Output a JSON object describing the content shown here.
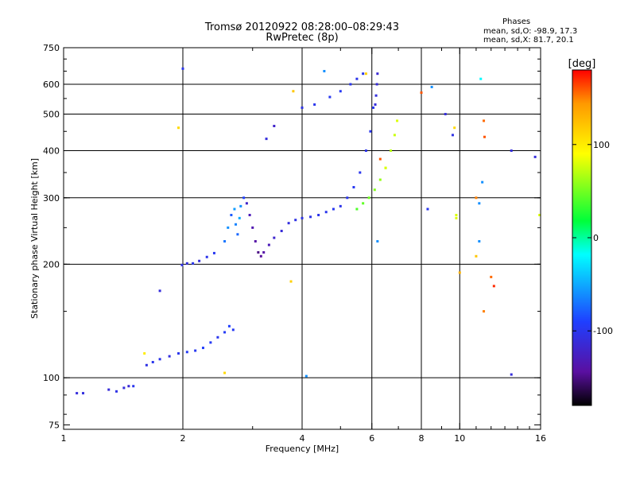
{
  "chart_data": {
    "type": "scatter",
    "title": "Tromsø 20120922 08:28:00–08:29:43",
    "subtitle": "RwPretec (8p)",
    "xlabel": "Frequency [MHz]",
    "ylabel": "Stationary phase Virtual Height [km]",
    "x_scale": "log",
    "y_scale": "log",
    "xlim": [
      1,
      16
    ],
    "ylim": [
      73,
      750
    ],
    "x_ticks": [
      1,
      2,
      4,
      6,
      8,
      10,
      16
    ],
    "y_ticks": [
      75,
      100,
      200,
      300,
      400,
      500,
      600,
      750
    ],
    "x_grid": [
      2,
      4,
      6,
      8,
      10
    ],
    "y_grid": [
      100,
      200,
      300,
      400,
      500,
      600
    ],
    "grid": true,
    "colorbar": {
      "label": "[deg]",
      "range": [
        -180,
        180
      ],
      "ticks": [
        100,
        0,
        -100
      ],
      "position": "right"
    },
    "phase_stats": {
      "heading": "Phases",
      "line_o": "mean, sd,O: -98.9, 17.3",
      "line_x": "mean, sd,X: 81.7, 20.1"
    },
    "series": [
      {
        "values": [
          [
            1.08,
            91,
            -110
          ],
          [
            1.12,
            91,
            -108
          ],
          [
            1.3,
            93,
            -112
          ],
          [
            1.36,
            92,
            -105
          ],
          [
            1.42,
            94,
            -110
          ],
          [
            1.46,
            95,
            -115
          ],
          [
            1.5,
            95,
            -100
          ],
          [
            1.62,
            108,
            -105
          ],
          [
            1.68,
            110,
            -100
          ],
          [
            1.75,
            112,
            -102
          ],
          [
            1.85,
            114,
            -108
          ],
          [
            1.95,
            116,
            -100
          ],
          [
            2.05,
            117,
            -95
          ],
          [
            2.15,
            118,
            -98
          ],
          [
            2.25,
            120,
            -92
          ],
          [
            2.35,
            124,
            -96
          ],
          [
            2.45,
            128,
            -100
          ],
          [
            2.55,
            132,
            -95
          ],
          [
            2.62,
            137,
            -90
          ],
          [
            2.68,
            134,
            -96
          ],
          [
            1.99,
            199,
            -105
          ],
          [
            2.05,
            201,
            -108
          ],
          [
            2.12,
            201,
            -100
          ],
          [
            2.2,
            204,
            -110
          ],
          [
            2.3,
            209,
            -102
          ],
          [
            2.4,
            214,
            -98
          ],
          [
            2.55,
            230,
            -70
          ],
          [
            2.6,
            250,
            -60
          ],
          [
            2.65,
            270,
            -80
          ],
          [
            2.7,
            280,
            -55
          ],
          [
            2.72,
            255,
            -65
          ],
          [
            2.75,
            240,
            -75
          ],
          [
            2.78,
            265,
            -50
          ],
          [
            2.8,
            285,
            -60
          ],
          [
            2.85,
            300,
            -90
          ],
          [
            2.9,
            290,
            -120
          ],
          [
            2.95,
            270,
            -130
          ],
          [
            3.0,
            250,
            -135
          ],
          [
            3.05,
            230,
            -140
          ],
          [
            3.1,
            215,
            -150
          ],
          [
            3.15,
            210,
            -145
          ],
          [
            3.2,
            215,
            -140
          ],
          [
            3.3,
            225,
            -130
          ],
          [
            3.4,
            235,
            -118
          ],
          [
            3.55,
            245,
            -112
          ],
          [
            3.7,
            257,
            -108
          ],
          [
            3.85,
            262,
            -105
          ],
          [
            4.0,
            265,
            -104
          ],
          [
            4.2,
            267,
            -103
          ],
          [
            4.4,
            270,
            -102
          ],
          [
            4.6,
            275,
            -100
          ],
          [
            4.8,
            280,
            -98
          ],
          [
            5.0,
            285,
            -102
          ],
          [
            5.2,
            300,
            -100
          ],
          [
            5.4,
            320,
            -98
          ],
          [
            5.6,
            350,
            -100
          ],
          [
            5.8,
            400,
            -102
          ],
          [
            5.95,
            450,
            -100
          ],
          [
            6.05,
            520,
            -100
          ],
          [
            6.2,
            640,
            -115
          ],
          [
            6.18,
            600,
            -112
          ],
          [
            6.15,
            560,
            -108
          ],
          [
            6.12,
            530,
            -110
          ],
          [
            4.0,
            520,
            -104
          ],
          [
            4.3,
            530,
            -100
          ],
          [
            4.7,
            555,
            -98
          ],
          [
            5.0,
            575,
            -96
          ],
          [
            5.3,
            600,
            -100
          ],
          [
            5.5,
            620,
            -102
          ],
          [
            5.7,
            640,
            -100
          ],
          [
            5.5,
            280,
            40
          ],
          [
            5.7,
            290,
            45
          ],
          [
            5.9,
            300,
            50
          ],
          [
            6.1,
            315,
            55
          ],
          [
            6.3,
            335,
            60
          ],
          [
            6.5,
            360,
            65
          ],
          [
            6.7,
            400,
            70
          ],
          [
            6.85,
            440,
            75
          ],
          [
            6.95,
            480,
            80
          ],
          [
            1.6,
            116,
            100
          ],
          [
            1.75,
            170,
            -110
          ],
          [
            1.95,
            460,
            110
          ],
          [
            2.0,
            660,
            -100
          ],
          [
            2.55,
            103,
            110
          ],
          [
            3.25,
            430,
            -110
          ],
          [
            3.4,
            465,
            -120
          ],
          [
            3.75,
            180,
            115
          ],
          [
            3.8,
            575,
            120
          ],
          [
            4.1,
            101,
            -60
          ],
          [
            4.55,
            650,
            -60
          ],
          [
            5.8,
            640,
            115
          ],
          [
            6.2,
            230,
            -60
          ],
          [
            6.3,
            380,
            160
          ],
          [
            6.5,
            360,
            80
          ],
          [
            8.0,
            570,
            160
          ],
          [
            8.3,
            280,
            -100
          ],
          [
            8.5,
            590,
            -60
          ],
          [
            9.2,
            500,
            -110
          ],
          [
            9.6,
            440,
            -105
          ],
          [
            9.7,
            460,
            110
          ],
          [
            9.8,
            270,
            80
          ],
          [
            10.0,
            190,
            130
          ],
          [
            11.0,
            300,
            150
          ],
          [
            11.2,
            290,
            -60
          ],
          [
            11.4,
            330,
            -60
          ],
          [
            11.5,
            150,
            150
          ],
          [
            11.5,
            480,
            155
          ],
          [
            11.55,
            435,
            160
          ],
          [
            12.0,
            185,
            155
          ],
          [
            12.2,
            175,
            170
          ],
          [
            13.5,
            400,
            -110
          ],
          [
            13.5,
            102,
            -110
          ],
          [
            15.5,
            385,
            -110
          ],
          [
            15.9,
            270,
            80
          ],
          [
            11.0,
            210,
            120
          ],
          [
            11.2,
            230,
            -60
          ],
          [
            11.3,
            620,
            -20
          ],
          [
            9.8,
            265,
            80
          ]
        ]
      }
    ]
  }
}
